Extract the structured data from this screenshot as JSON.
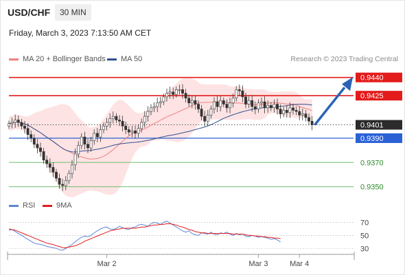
{
  "header": {
    "symbol": "USD/CHF",
    "timeframe": "30 MIN",
    "datetime": "Friday, March 3, 2023 7:13:50 AM CET",
    "credit": "Research © 2023 Trading Central"
  },
  "colors": {
    "resistance": "#e31b1b",
    "support": "#2a62d6",
    "target": "#6fbf6f",
    "ma20": "#f08080",
    "ma50": "#2e4f8f",
    "band": "#fde0e0",
    "candle": "#c41e1e",
    "rsi": "#5b86d6",
    "rsi_ma": "#e31b1b",
    "arrow": "#2a62b6"
  },
  "legend": {
    "main": [
      {
        "label": "MA 20 + Bollinger Bands",
        "color": "#f08080"
      },
      {
        "label": "MA 50",
        "color": "#2e4f8f"
      }
    ],
    "rsi": [
      {
        "label": "RSI",
        "color": "#5b86d6"
      },
      {
        "label": "9MA",
        "color": "#e31b1b"
      }
    ]
  },
  "chart_data": [
    {
      "type": "candlestick",
      "ylim": [
        0.9343,
        0.945
      ],
      "levels": [
        {
          "value": 0.944,
          "label": "0.9440",
          "kind": "resistance"
        },
        {
          "value": 0.9425,
          "label": "0.9425",
          "kind": "resistance"
        },
        {
          "value": 0.9401,
          "label": "0.9401",
          "kind": "current"
        },
        {
          "value": 0.939,
          "label": "0.9390",
          "kind": "support"
        },
        {
          "value": 0.937,
          "label": "0.9370",
          "kind": "target"
        },
        {
          "value": 0.935,
          "label": "0.9350",
          "kind": "target"
        }
      ],
      "x_ticks": [
        {
          "label": "Mar 2",
          "index": 31
        },
        {
          "label": "Mar 3",
          "index": 79
        },
        {
          "label": "Mar 4",
          "index": 92
        }
      ],
      "candles_per_day": 48,
      "n_slots": 103,
      "closes": [
        0.9402,
        0.9403,
        0.9405,
        0.9403,
        0.94,
        0.9398,
        0.9393,
        0.939,
        0.9385,
        0.9382,
        0.9379,
        0.9372,
        0.9369,
        0.9366,
        0.9362,
        0.9357,
        0.9352,
        0.9351,
        0.9355,
        0.9361,
        0.9368,
        0.9377,
        0.9384,
        0.9391,
        0.9385,
        0.9382,
        0.9388,
        0.9394,
        0.9391,
        0.9397,
        0.94,
        0.9403,
        0.9406,
        0.9408,
        0.9405,
        0.9404,
        0.94,
        0.9397,
        0.9395,
        0.9396,
        0.9394,
        0.9398,
        0.9403,
        0.9408,
        0.9412,
        0.9415,
        0.9416,
        0.9419,
        0.942,
        0.9424,
        0.9427,
        0.9428,
        0.9426,
        0.943,
        0.943,
        0.9427,
        0.9423,
        0.9419,
        0.9421,
        0.9418,
        0.9414,
        0.9408,
        0.9404,
        0.9409,
        0.9414,
        0.942,
        0.9416,
        0.9421,
        0.9418,
        0.9415,
        0.9419,
        0.9423,
        0.943,
        0.9429,
        0.9424,
        0.9418,
        0.9421,
        0.9416,
        0.9414,
        0.9419,
        0.942,
        0.9415,
        0.9417,
        0.9415,
        0.9418,
        0.9414,
        0.941,
        0.9413,
        0.9411,
        0.9415,
        0.9413,
        0.9412,
        0.9409,
        0.941,
        0.9407,
        0.9404,
        0.9401
      ],
      "forecast_arrow": {
        "from": 0.9401,
        "to": 0.9438
      }
    },
    {
      "type": "line",
      "ylabel": "",
      "y_ticks": [
        70,
        50,
        30
      ],
      "ylim": [
        25,
        78
      ],
      "series": [
        {
          "name": "RSI",
          "values": [
            58,
            59,
            56,
            53,
            50,
            47,
            44,
            41,
            38,
            37,
            36,
            35,
            33,
            32,
            31,
            30,
            28,
            27,
            30,
            33,
            36,
            40,
            44,
            47,
            49,
            48,
            50,
            54,
            57,
            60,
            62,
            63,
            60,
            59,
            61,
            64,
            62,
            60,
            59,
            62,
            63,
            66,
            67,
            66,
            64,
            68,
            70,
            69,
            67,
            70,
            72,
            69,
            66,
            63,
            60,
            57,
            55,
            57,
            53,
            51,
            50,
            54,
            53,
            52,
            55,
            52,
            51,
            54,
            53,
            55,
            52,
            50,
            53,
            51,
            52,
            49,
            48,
            50,
            49,
            47,
            48,
            47,
            46,
            44,
            45,
            43,
            40
          ]
        },
        {
          "name": "9MA",
          "values": [
            60,
            59,
            58,
            56,
            54,
            52,
            50,
            48,
            46,
            44,
            42,
            40,
            38,
            37,
            36,
            34,
            33,
            31,
            31,
            32,
            33,
            34,
            36,
            38,
            41,
            43,
            45,
            47,
            49,
            51,
            53,
            55,
            57,
            58,
            59,
            60,
            61,
            61,
            61,
            61,
            61,
            62,
            63,
            63,
            64,
            65,
            66,
            66,
            67,
            67,
            68,
            68,
            67,
            66,
            64,
            63,
            61,
            59,
            58,
            56,
            55,
            54,
            54,
            53,
            53,
            53,
            53,
            53,
            53,
            53,
            53,
            52,
            52,
            52,
            52,
            51,
            50,
            50,
            49,
            49,
            48,
            48,
            47,
            47,
            46,
            46,
            45
          ]
        }
      ]
    }
  ]
}
